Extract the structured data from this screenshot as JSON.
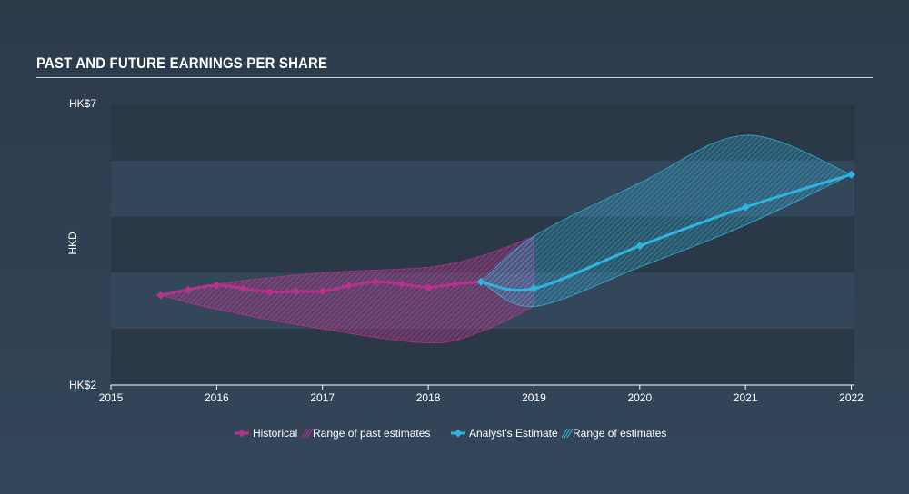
{
  "chart_data": {
    "type": "line",
    "title": "PAST AND FUTURE EARNINGS PER SHARE",
    "xlabel": "",
    "ylabel": "HKD",
    "xlim": [
      2015,
      2022.03
    ],
    "ylim": [
      2,
      7
    ],
    "x_ticks": [
      "2015",
      "2016",
      "2017",
      "2018",
      "2019",
      "2020",
      "2021",
      "2022"
    ],
    "y_ticks": [
      "HK$7",
      "HK$2"
    ],
    "grid_bands": true,
    "legend_position": "bottom",
    "series": [
      {
        "name": "Historical",
        "color": "#b5338a",
        "points": [
          [
            2015.47,
            3.6
          ],
          [
            2015.73,
            3.7
          ],
          [
            2016.0,
            3.78
          ],
          [
            2016.25,
            3.72
          ],
          [
            2016.5,
            3.66
          ],
          [
            2016.75,
            3.67
          ],
          [
            2017.0,
            3.67
          ],
          [
            2017.25,
            3.77
          ],
          [
            2017.5,
            3.84
          ],
          [
            2017.75,
            3.8
          ],
          [
            2018.0,
            3.74
          ],
          [
            2018.25,
            3.8
          ],
          [
            2018.5,
            3.84
          ]
        ]
      },
      {
        "name": "Analyst's Estimate",
        "color": "#2fb4df",
        "points": [
          [
            2018.5,
            3.84
          ],
          [
            2019.0,
            3.72
          ],
          [
            2020.0,
            4.48
          ],
          [
            2021.0,
            5.17
          ],
          [
            2022.0,
            5.75
          ]
        ]
      }
    ],
    "ranges": [
      {
        "name": "Range of past estimates",
        "color": "#b5338a",
        "upper": [
          [
            2015.47,
            3.6
          ],
          [
            2016.0,
            3.8
          ],
          [
            2017.0,
            4.0
          ],
          [
            2018.0,
            4.1
          ],
          [
            2018.5,
            4.3
          ],
          [
            2019.0,
            4.65
          ]
        ],
        "lower": [
          [
            2015.47,
            3.6
          ],
          [
            2016.0,
            3.35
          ],
          [
            2017.0,
            3.0
          ],
          [
            2018.0,
            2.75
          ],
          [
            2018.5,
            2.95
          ],
          [
            2019.0,
            3.4
          ]
        ]
      },
      {
        "name": "Range of estimates",
        "color": "#2fb4df",
        "upper": [
          [
            2018.5,
            3.84
          ],
          [
            2019.0,
            4.65
          ],
          [
            2020.0,
            5.6
          ],
          [
            2021.0,
            6.45
          ],
          [
            2022.0,
            5.75
          ]
        ],
        "lower": [
          [
            2018.5,
            3.84
          ],
          [
            2019.0,
            3.4
          ],
          [
            2020.0,
            4.1
          ],
          [
            2021.0,
            4.85
          ],
          [
            2022.0,
            5.75
          ]
        ]
      }
    ],
    "legend": [
      {
        "label": "Historical",
        "kind": "line",
        "color": "#b5338a"
      },
      {
        "label": "Range of past estimates",
        "kind": "range",
        "color": "#b5338a"
      },
      {
        "label": "Analyst's Estimate",
        "kind": "line",
        "color": "#2fb4df"
      },
      {
        "label": "Range of estimates",
        "kind": "range",
        "color": "#2fb4df"
      }
    ]
  }
}
